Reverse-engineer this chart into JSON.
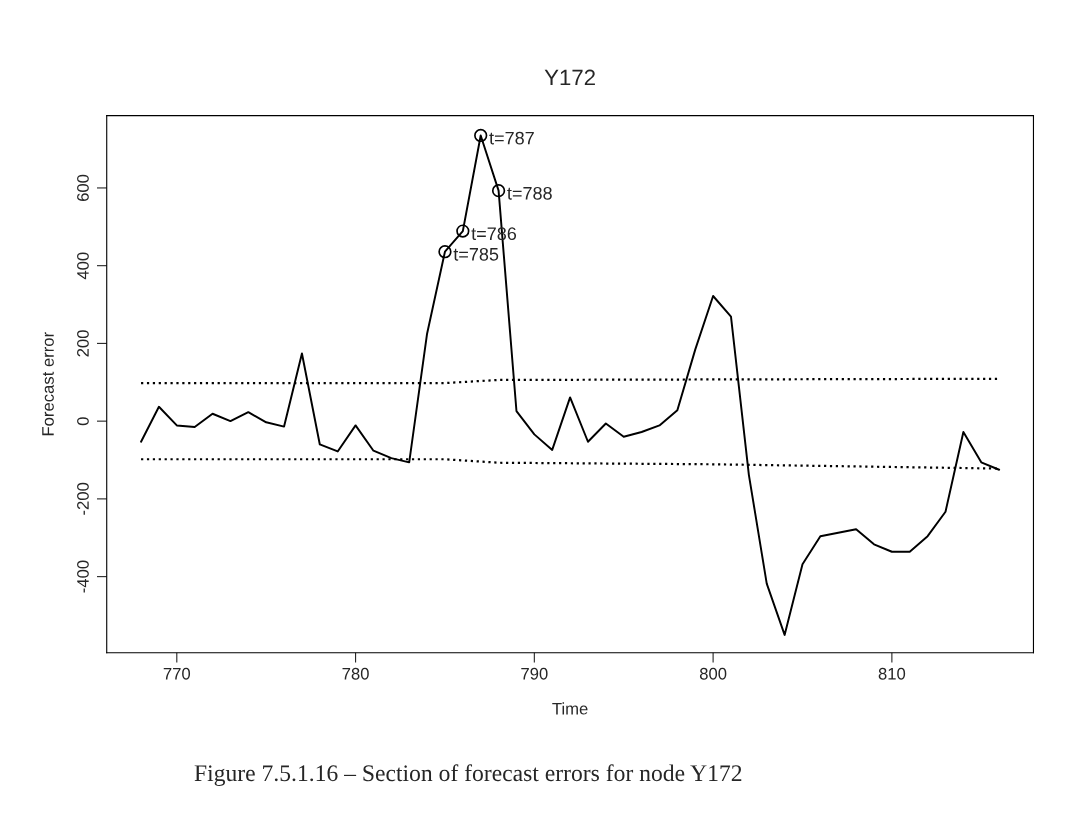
{
  "chart_data": {
    "type": "line",
    "title": "Y172",
    "xlabel": "Time",
    "ylabel": "Forecast error",
    "x": [
      768,
      769,
      770,
      771,
      772,
      773,
      774,
      775,
      776,
      777,
      778,
      779,
      780,
      781,
      782,
      783,
      784,
      785,
      786,
      787,
      788,
      789,
      790,
      791,
      792,
      793,
      794,
      795,
      796,
      797,
      798,
      799,
      800,
      801,
      802,
      803,
      804,
      805,
      806,
      807,
      808,
      809,
      810,
      811,
      812,
      813,
      814,
      815,
      816
    ],
    "series": [
      {
        "color": "#000000",
        "line_style": "solid",
        "marker": "none",
        "values": [
          -53,
          37,
          -11,
          -15,
          19,
          0,
          23,
          -3,
          -14,
          174,
          -60,
          -78,
          -11,
          -76,
          -95,
          -106,
          225,
          436,
          489,
          735,
          593,
          26,
          -34,
          -74,
          61,
          -53,
          -6,
          -40,
          -28,
          -11,
          28,
          184,
          322,
          269,
          -138,
          -418,
          -550,
          -368,
          -296,
          -287,
          -278,
          -317,
          -336,
          -336,
          -296,
          -233,
          -28,
          -106,
          -125
        ]
      },
      {
        "color": "#000000",
        "line_style": "dotted",
        "marker": "none",
        "x": [
          768,
          785,
          788,
          816
        ],
        "values": [
          98,
          98,
          106,
          109
        ]
      },
      {
        "color": "#000000",
        "line_style": "dotted",
        "marker": "none",
        "x": [
          768,
          785,
          788,
          800,
          816
        ],
        "values": [
          -98,
          -98,
          -107,
          -111,
          -122
        ]
      },
      {
        "type": "scatter",
        "color": "#000000",
        "marker": "circle",
        "x": [
          785,
          786,
          787,
          788
        ],
        "values": [
          436,
          489,
          735,
          593
        ]
      }
    ],
    "annotations": [
      {
        "text": "t=785",
        "x": 785,
        "y": 436
      },
      {
        "text": "t=786",
        "x": 786,
        "y": 489
      },
      {
        "text": "t=787",
        "x": 787,
        "y": 735
      },
      {
        "text": "t=788",
        "x": 788,
        "y": 593
      },
      "Figure 7.5.1.16 – Section of forecast errors for node Y172"
    ],
    "xlim": [
      766.08,
      817.92
    ],
    "ylim": [
      -596,
      786
    ],
    "xticks": [
      770,
      780,
      790,
      800,
      810
    ],
    "yticks": [
      -400,
      -200,
      0,
      200,
      400,
      600
    ],
    "grid": false,
    "legend": false
  }
}
